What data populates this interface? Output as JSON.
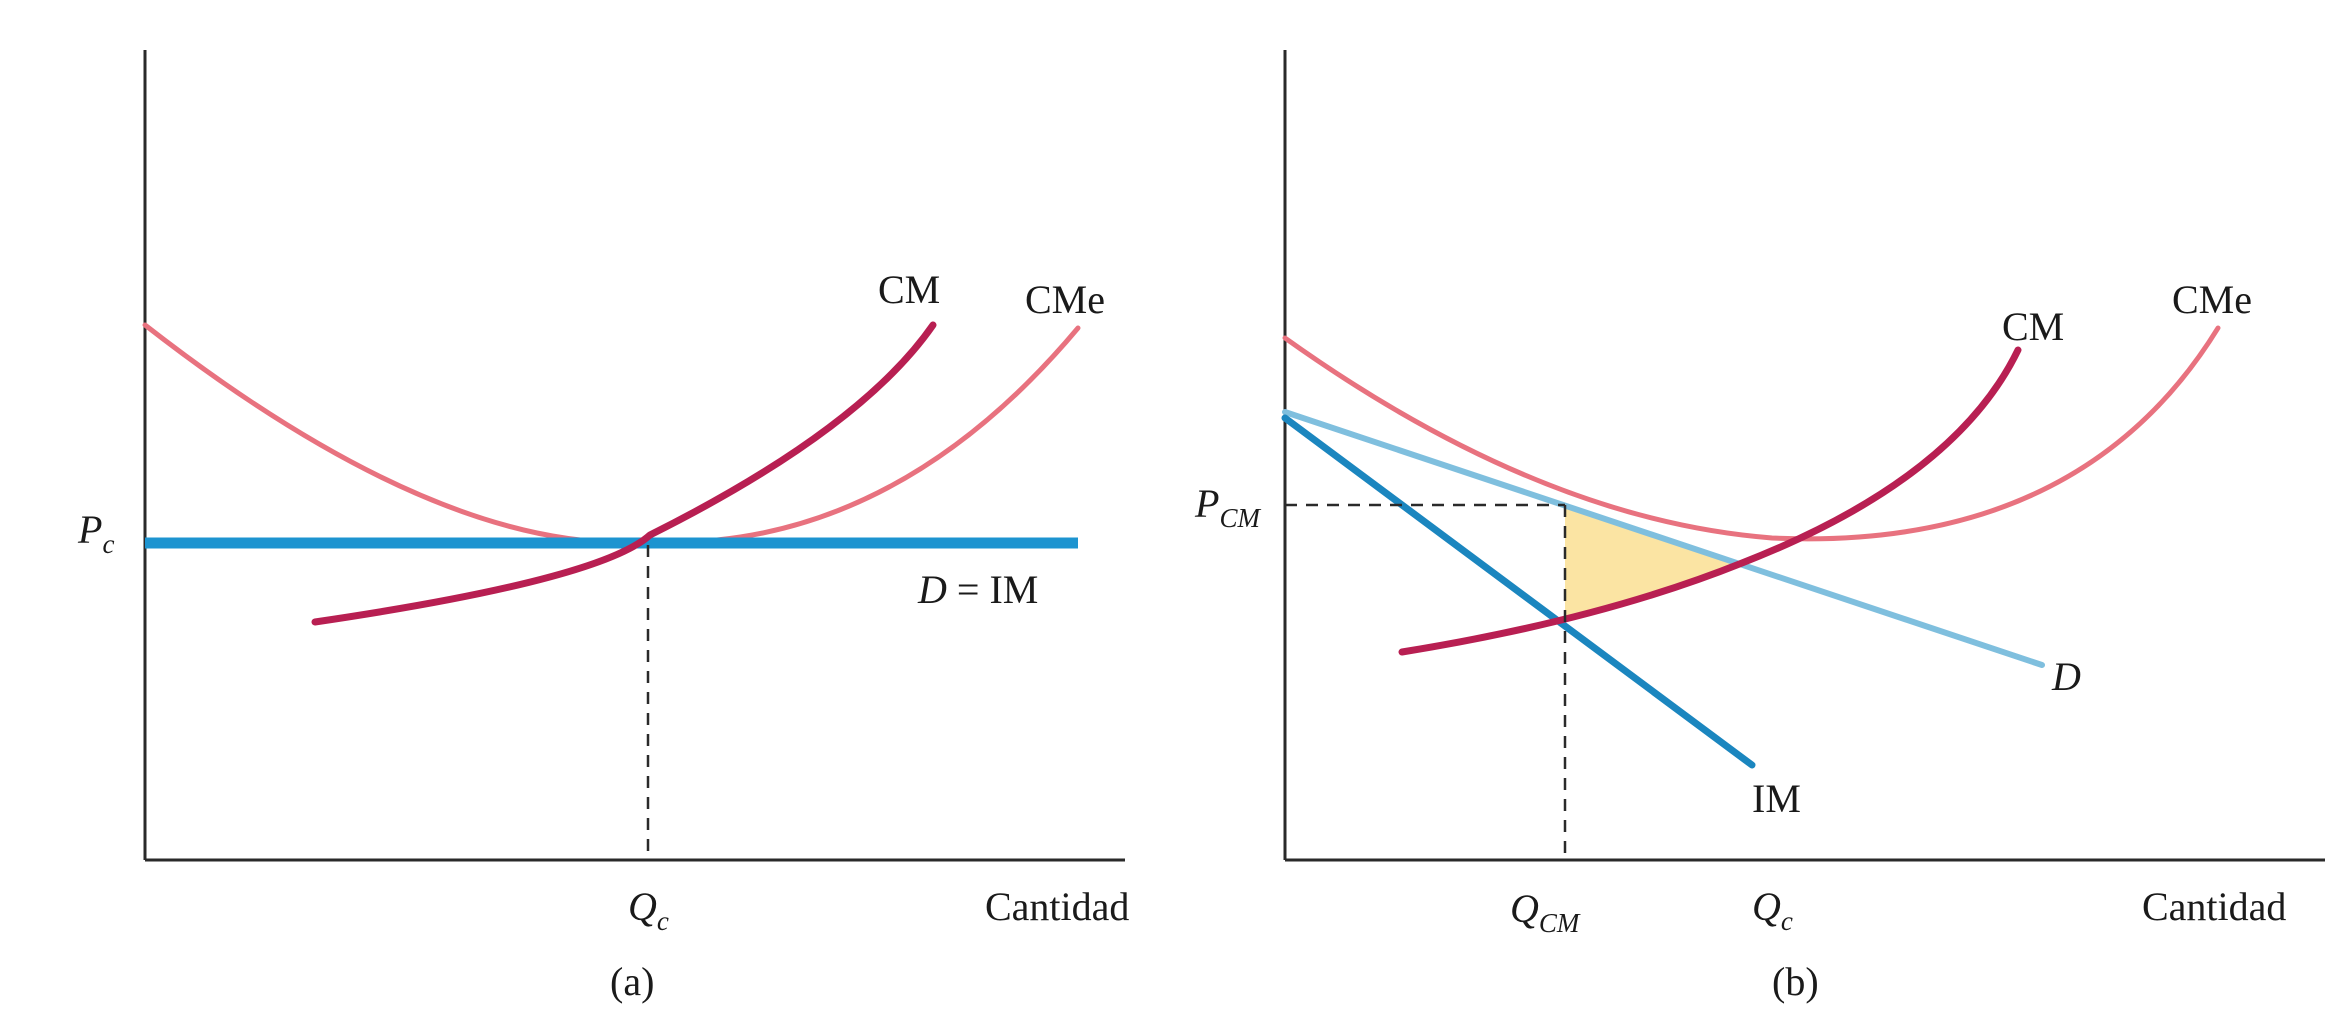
{
  "colors": {
    "cm": "#b81f52",
    "cme": "#e8727f",
    "demand_a": "#1d94d0",
    "demand_b": "#7fbfde",
    "im_b": "#1b86bf",
    "deadweight": "#fbe4a3",
    "axis": "#2a2a2a"
  },
  "panel_a": {
    "caption": "(a)",
    "x_axis_label": "Cantidad",
    "price_label_main": "P",
    "price_label_sub": "c",
    "quantity_label_main": "Q",
    "quantity_label_sub": "c",
    "curve_cm": "CM",
    "curve_cme": "CMe",
    "demand_main": "D",
    "demand_rest": " = IM"
  },
  "panel_b": {
    "caption": "(b)",
    "x_axis_label": "Cantidad",
    "price_label_main": "P",
    "price_label_sub": "CM",
    "quantity_cm_main": "Q",
    "quantity_cm_sub": "CM",
    "quantity_c_main": "Q",
    "quantity_c_sub": "c",
    "curve_cm": "CM",
    "curve_cme": "CMe",
    "curve_d": "D",
    "curve_im": "IM"
  }
}
